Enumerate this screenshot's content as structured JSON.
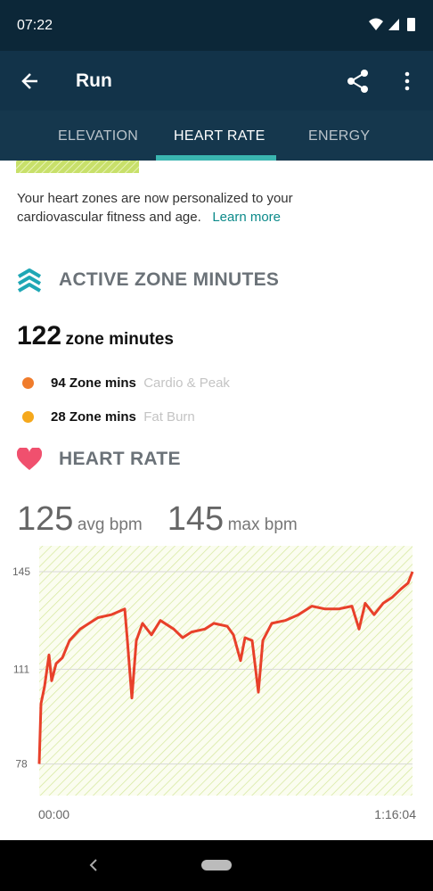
{
  "status_bar": {
    "time": "07:22"
  },
  "toolbar": {
    "title": "Run"
  },
  "tabs": [
    "ELEVATION",
    "HEART RATE",
    "ENERGY"
  ],
  "notice": {
    "line1": "Your heart zones are now personalized to your",
    "line2": "cardiovascular fitness and age.",
    "link": "Learn more"
  },
  "active_zone_minutes": {
    "heading": "ACTIVE ZONE MINUTES",
    "total": 122,
    "total_unit": "zone minutes",
    "zones": [
      {
        "minutes": 94,
        "unit": "Zone mins",
        "name": "Cardio & Peak",
        "color": "#f07c2c"
      },
      {
        "minutes": 28,
        "unit": "Zone mins",
        "name": "Fat Burn",
        "color": "#f5a81c"
      }
    ]
  },
  "heart_rate": {
    "heading": "HEART RATE",
    "avg": 125,
    "avg_unit": "avg bpm",
    "max": 145,
    "max_unit": "max bpm"
  },
  "chart_data": {
    "type": "line",
    "color": "#e8402a",
    "x": [
      0,
      22,
      65,
      120,
      153,
      207,
      283,
      370,
      501,
      610,
      719,
      882,
      1046,
      1078,
      1133,
      1187,
      1264,
      1373,
      1481,
      1645,
      1754,
      1863,
      2026,
      2135,
      2298,
      2375,
      2462,
      2516,
      2603,
      2680,
      2734,
      2843,
      3007,
      3170,
      3333,
      3497,
      3660,
      3823,
      3910,
      3986,
      4095,
      4205,
      4314,
      4423,
      4510,
      4564
    ],
    "values": [
      78,
      99,
      105,
      116,
      107,
      113,
      115,
      121,
      125,
      127,
      129,
      130,
      132,
      121,
      101,
      121,
      127,
      123,
      128,
      125,
      122,
      124,
      125,
      127,
      126,
      123,
      114,
      122,
      121,
      103,
      121,
      127,
      128,
      130,
      133,
      132,
      132,
      133,
      125,
      134,
      130,
      134,
      136,
      139,
      141,
      145
    ],
    "xlim": [
      0,
      4564
    ],
    "xticks": [
      {
        "value": 0,
        "label": "00:00"
      },
      {
        "value": 4564,
        "label": "1:16:04"
      }
    ],
    "ylim": [
      67,
      154
    ],
    "yticks": [
      78,
      111,
      145
    ],
    "grid": true
  }
}
